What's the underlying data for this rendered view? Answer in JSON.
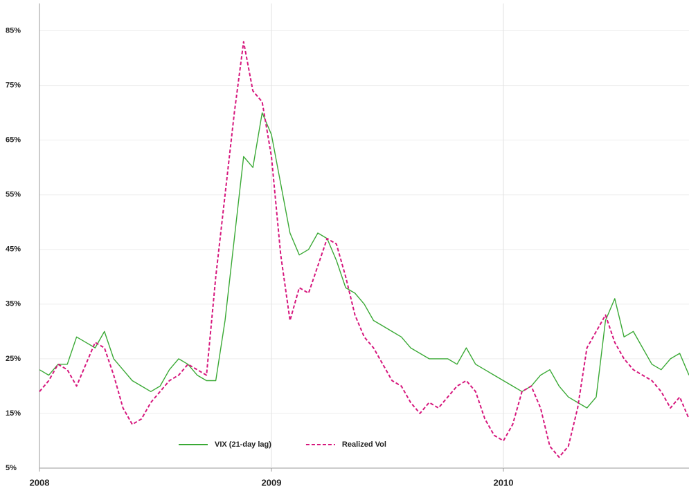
{
  "chart_data": {
    "type": "line",
    "x": [
      2008,
      2008.04,
      2008.08,
      2008.12,
      2008.16,
      2008.2,
      2008.24,
      2008.28,
      2008.32,
      2008.36,
      2008.4,
      2008.44,
      2008.48,
      2008.52,
      2008.56,
      2008.6,
      2008.64,
      2008.68,
      2008.72,
      2008.76,
      2008.8,
      2008.84,
      2008.88,
      2008.92,
      2008.96,
      2009,
      2009.04,
      2009.08,
      2009.12,
      2009.16,
      2009.2,
      2009.24,
      2009.28,
      2009.32,
      2009.36,
      2009.4,
      2009.44,
      2009.48,
      2009.52,
      2009.56,
      2009.6,
      2009.64,
      2009.68,
      2009.72,
      2009.76,
      2009.8,
      2009.84,
      2009.88,
      2009.92,
      2009.96,
      2010,
      2010.04,
      2010.08,
      2010.12,
      2010.16,
      2010.2,
      2010.24,
      2010.28,
      2010.32,
      2010.36,
      2010.4,
      2010.44,
      2010.48,
      2010.52,
      2010.56,
      2010.6,
      2010.64,
      2010.68,
      2010.72,
      2010.76,
      2010.8
    ],
    "series": [
      {
        "name": "VIX (21-day lag)",
        "color": "#3aa935",
        "dashed": false,
        "values": [
          23,
          22,
          24,
          24,
          29,
          28,
          27,
          30,
          25,
          23,
          21,
          20,
          19,
          20,
          23,
          25,
          24,
          22,
          21,
          21,
          32,
          47,
          62,
          60,
          70,
          66,
          57,
          48,
          44,
          45,
          48,
          47,
          43,
          38,
          37,
          35,
          32,
          31,
          30,
          29,
          27,
          26,
          25,
          25,
          25,
          24,
          27,
          24,
          23,
          22,
          21,
          20,
          19,
          20,
          22,
          23,
          20,
          18,
          17,
          16,
          18,
          32,
          36,
          29,
          30,
          27,
          24,
          23,
          25,
          26,
          22
        ]
      },
      {
        "name": "Realized Vol",
        "color": "#d6177d",
        "dashed": true,
        "values": [
          19,
          21,
          24,
          23,
          20,
          24,
          28,
          27,
          22,
          16,
          13,
          14,
          17,
          19,
          21,
          22,
          24,
          23,
          22,
          40,
          55,
          70,
          83,
          74,
          72,
          62,
          44,
          32,
          38,
          37,
          42,
          47,
          46,
          40,
          33,
          29,
          27,
          24,
          21,
          20,
          17,
          15,
          17,
          16,
          18,
          20,
          21,
          19,
          14,
          11,
          10,
          13,
          19,
          20,
          16,
          9,
          7,
          9,
          16,
          27,
          30,
          33,
          28,
          25,
          23,
          22,
          21,
          19,
          16,
          18,
          14
        ]
      }
    ],
    "xlim": [
      2008,
      2010.8
    ],
    "xticks": [
      2008,
      2009,
      2010
    ],
    "ylim": [
      5,
      90
    ],
    "yticks": [
      {
        "value": 5,
        "label": "5%"
      },
      {
        "value": 15,
        "label": "15%"
      },
      {
        "value": 25,
        "label": "25%"
      },
      {
        "value": 35,
        "label": "35%"
      },
      {
        "value": 45,
        "label": "45%"
      },
      {
        "value": 55,
        "label": "55%"
      },
      {
        "value": 65,
        "label": "65%"
      },
      {
        "value": 75,
        "label": "75%"
      },
      {
        "value": 85,
        "label": "85%"
      }
    ],
    "grid": true,
    "legend": "bottom"
  }
}
